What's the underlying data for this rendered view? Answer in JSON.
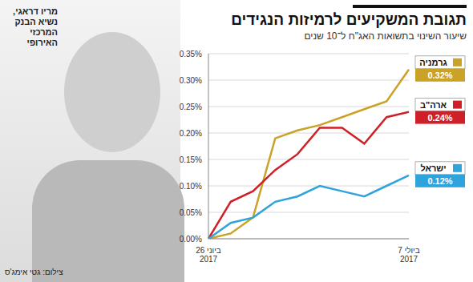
{
  "chart_data": {
    "type": "line",
    "title": "תגובת המשקיעים לרמיזות הנגידים",
    "subtitle": "שיעור השינוי בתשואות האג\"ח ל־10 שנים",
    "annotations": [
      "מריו דראגי, נשיא הבנק המרכזי האירופי",
      "צילום: גטי אימג'ס"
    ],
    "categories": [
      "26 ביוני 2017",
      null,
      null,
      null,
      null,
      null,
      null,
      null,
      null,
      "7 ביולי 2017"
    ],
    "series": [
      {
        "name": "גרמניה",
        "color": "#c9a227",
        "values": [
          0,
          0.01,
          0.04,
          0.19,
          0.205,
          0.215,
          0.23,
          0.245,
          0.26,
          0.32
        ],
        "value_labels": [
          null,
          null,
          null,
          null,
          null,
          null,
          null,
          null,
          null,
          "0.32%"
        ]
      },
      {
        "name": "ארה\"ב",
        "color": "#d02027",
        "values": [
          0,
          0.07,
          0.09,
          0.13,
          0.16,
          0.21,
          0.21,
          0.18,
          0.23,
          0.24
        ],
        "value_labels": [
          null,
          null,
          null,
          null,
          null,
          null,
          null,
          null,
          null,
          "0.24%"
        ]
      },
      {
        "name": "ישראל",
        "color": "#2ea3dc",
        "values": [
          0,
          0.03,
          0.04,
          0.07,
          0.08,
          0.1,
          0.09,
          0.08,
          0.1,
          0.12
        ],
        "value_labels": [
          null,
          null,
          null,
          null,
          null,
          null,
          null,
          null,
          null,
          "0.12%"
        ]
      }
    ],
    "ylim": [
      0,
      0.35
    ],
    "yticks": [
      {
        "value": 0,
        "label": "0.00%"
      },
      {
        "value": 0.05,
        "label": "0.05%"
      },
      {
        "value": 0.1,
        "label": "0.10%"
      },
      {
        "value": 0.15,
        "label": "0.15%"
      },
      {
        "value": 0.2,
        "label": "0.20%"
      },
      {
        "value": 0.25,
        "label": "0.25%"
      },
      {
        "value": 0.3,
        "label": "0.30%"
      },
      {
        "value": 0.35,
        "label": "0.35%"
      }
    ],
    "grid": true,
    "data_labels": true
  }
}
